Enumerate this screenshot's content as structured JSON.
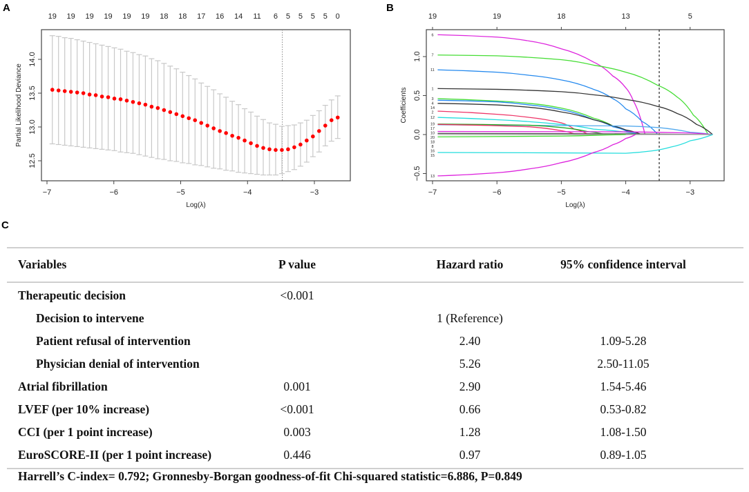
{
  "panels": {
    "a": "A",
    "b": "B",
    "c": "C"
  },
  "chart_data": [
    {
      "type": "scatter",
      "title": "",
      "xlabel": "Log(λ)",
      "ylabel": "Partial Likelihood Deviance",
      "xlim": [
        -7.1,
        -2.55
      ],
      "ylim": [
        12.23,
        14.45
      ],
      "xticks": [
        -7,
        -6,
        -5,
        -4,
        -3
      ],
      "xtick_labels": [
        "−7",
        "−6",
        "−5",
        "−4",
        "−3"
      ],
      "yticks": [
        12.5,
        13.0,
        13.5,
        14.0
      ],
      "ytick_labels": [
        "12.5",
        "13.0",
        "13.5",
        "14.0"
      ],
      "x_start": -6.92,
      "x_step": 0.0928,
      "mean": [
        13.55,
        13.54,
        13.53,
        13.52,
        13.51,
        13.5,
        13.48,
        13.47,
        13.45,
        13.44,
        13.42,
        13.41,
        13.39,
        13.37,
        13.35,
        13.33,
        13.3,
        13.28,
        13.25,
        13.22,
        13.19,
        13.16,
        13.13,
        13.1,
        13.06,
        13.02,
        12.98,
        12.94,
        12.91,
        12.87,
        12.84,
        12.8,
        12.76,
        12.72,
        12.69,
        12.67,
        12.66,
        12.66,
        12.67,
        12.7,
        12.74,
        12.8,
        12.86,
        12.94,
        13.02,
        13.1,
        13.14
      ],
      "upper": [
        14.35,
        14.34,
        14.32,
        14.31,
        14.29,
        14.27,
        14.25,
        14.23,
        14.21,
        14.19,
        14.17,
        14.15,
        14.12,
        14.1,
        14.07,
        14.05,
        14.01,
        13.98,
        13.94,
        13.9,
        13.86,
        13.81,
        13.76,
        13.71,
        13.65,
        13.6,
        13.55,
        13.49,
        13.44,
        13.38,
        13.33,
        13.27,
        13.22,
        13.16,
        13.11,
        13.06,
        13.04,
        13.01,
        13.02,
        13.03,
        13.06,
        13.1,
        13.17,
        13.24,
        13.32,
        13.4,
        13.46
      ],
      "lower": [
        12.75,
        12.74,
        12.73,
        12.72,
        12.71,
        12.7,
        12.69,
        12.68,
        12.67,
        12.66,
        12.65,
        12.63,
        12.62,
        12.61,
        12.59,
        12.57,
        12.55,
        12.53,
        12.52,
        12.5,
        12.49,
        12.47,
        12.46,
        12.44,
        12.43,
        12.41,
        12.39,
        12.38,
        12.36,
        12.35,
        12.33,
        12.32,
        12.31,
        12.3,
        12.29,
        12.29,
        12.29,
        12.31,
        12.34,
        12.37,
        12.42,
        12.48,
        12.56,
        12.63,
        12.72,
        12.79,
        12.83
      ],
      "top_axis": [
        {
          "i": 0,
          "n": "19"
        },
        {
          "i": 3,
          "n": "19"
        },
        {
          "i": 6,
          "n": "19"
        },
        {
          "i": 9,
          "n": "19"
        },
        {
          "i": 12,
          "n": "19"
        },
        {
          "i": 15,
          "n": "19"
        },
        {
          "i": 18,
          "n": "18"
        },
        {
          "i": 21,
          "n": "18"
        },
        {
          "i": 24,
          "n": "17"
        },
        {
          "i": 27,
          "n": "16"
        },
        {
          "i": 30,
          "n": "14"
        },
        {
          "i": 33,
          "n": "11"
        },
        {
          "i": 36,
          "n": "6"
        },
        {
          "i": 38,
          "n": "5"
        },
        {
          "i": 40,
          "n": "5"
        },
        {
          "i": 42,
          "n": "5"
        },
        {
          "i": 44,
          "n": "5"
        },
        {
          "i": 46,
          "n": "0"
        }
      ],
      "vline": -3.48,
      "point_color": "#ff0000",
      "errorbar_color": "#c8c8c8"
    },
    {
      "type": "line",
      "title": "",
      "xlabel": "Log(λ)",
      "ylabel": "Coefficients",
      "xlim": [
        -7.1,
        -2.45
      ],
      "ylim": [
        -0.6,
        1.35
      ],
      "xticks": [
        -7,
        -6,
        -5,
        -4,
        -3
      ],
      "xtick_labels": [
        "−7",
        "−6",
        "−5",
        "−4",
        "−3"
      ],
      "yticks": [
        -0.5,
        0.0,
        0.5,
        1.0
      ],
      "ytick_labels": [
        "−0.5",
        "0.0",
        "0.5",
        "1.0"
      ],
      "top_axis": [
        {
          "x": -7,
          "n": "19"
        },
        {
          "x": -6,
          "n": "19"
        },
        {
          "x": -5,
          "n": "18"
        },
        {
          "x": -4,
          "n": "13"
        },
        {
          "x": -3,
          "n": "5"
        }
      ],
      "vline": -3.48,
      "series": [
        {
          "name": "6",
          "color": "#dd22dd",
          "points": [
            [
              -6.92,
              1.28
            ],
            [
              -6,
              1.25
            ],
            [
              -5.5,
              1.2
            ],
            [
              -5,
              1.1
            ],
            [
              -4.5,
              0.93
            ],
            [
              -4.2,
              0.75
            ],
            [
              -4,
              0.6
            ],
            [
              -3.88,
              0.43
            ],
            [
              -3.7,
              0
            ]
          ]
        },
        {
          "name": "7",
          "color": "#44dd33",
          "points": [
            [
              -6.92,
              1.02
            ],
            [
              -6,
              1.01
            ],
            [
              -5,
              0.96
            ],
            [
              -4.5,
              0.89
            ],
            [
              -4,
              0.8
            ],
            [
              -3.5,
              0.63
            ],
            [
              -3.2,
              0.48
            ],
            [
              -2.95,
              0.25
            ],
            [
              -2.72,
              0
            ]
          ]
        },
        {
          "name": "11",
          "color": "#2288ee",
          "points": [
            [
              -6.92,
              0.83
            ],
            [
              -6,
              0.8
            ],
            [
              -5.5,
              0.76
            ],
            [
              -5,
              0.7
            ],
            [
              -4.5,
              0.58
            ],
            [
              -4.2,
              0.46
            ],
            [
              -4,
              0.33
            ],
            [
              -3.75,
              0.17
            ],
            [
              -3.5,
              0
            ]
          ]
        },
        {
          "name": "1",
          "color": "#333333",
          "points": [
            [
              -6.92,
              0.59
            ],
            [
              -6,
              0.58
            ],
            [
              -5,
              0.55
            ],
            [
              -4.5,
              0.51
            ],
            [
              -4,
              0.45
            ],
            [
              -3.5,
              0.36
            ],
            [
              -3.2,
              0.27
            ],
            [
              -2.9,
              0.13
            ],
            [
              -2.65,
              0
            ]
          ]
        },
        {
          "name": "3",
          "color": "#44dd33",
          "points": [
            [
              -6.92,
              0.46
            ],
            [
              -6,
              0.43
            ],
            [
              -5.5,
              0.4
            ],
            [
              -5,
              0.34
            ],
            [
              -4.5,
              0.21
            ],
            [
              -4.2,
              0.11
            ],
            [
              -4,
              0.05
            ],
            [
              -3.85,
              0
            ]
          ]
        },
        {
          "name": "4",
          "color": "#2288ee",
          "points": [
            [
              -6.92,
              0.44
            ],
            [
              -6,
              0.42
            ],
            [
              -5.5,
              0.38
            ],
            [
              -5,
              0.32
            ],
            [
              -4.5,
              0.19
            ],
            [
              -4.2,
              0.1
            ],
            [
              -4,
              0.05
            ],
            [
              -3.8,
              0
            ]
          ]
        },
        {
          "name": "14",
          "color": "#333333",
          "points": [
            [
              -6.92,
              0.4
            ],
            [
              -6,
              0.38
            ],
            [
              -5.5,
              0.35
            ],
            [
              -5,
              0.29
            ],
            [
              -4.5,
              0.19
            ],
            [
              -4.2,
              0.11
            ],
            [
              -4,
              0.06
            ],
            [
              -3.75,
              0
            ]
          ]
        },
        {
          "name": "2",
          "color": "#ee3366",
          "points": [
            [
              -6.92,
              0.3
            ],
            [
              -6,
              0.26
            ],
            [
              -5.5,
              0.22
            ],
            [
              -5,
              0.15
            ],
            [
              -4.8,
              0.07
            ],
            [
              -4.6,
              0.01
            ],
            [
              -4.3,
              0
            ]
          ]
        },
        {
          "name": "12",
          "color": "#22dddd",
          "points": [
            [
              -6.92,
              0.22
            ],
            [
              -6,
              0.19
            ],
            [
              -5,
              0.13
            ],
            [
              -4.5,
              0.07
            ],
            [
              -4,
              0.03
            ],
            [
              -3.8,
              0
            ]
          ]
        },
        {
          "name": "10",
          "color": "#55aaee",
          "points": [
            [
              -6.92,
              0.125
            ],
            [
              -5,
              0.115
            ],
            [
              -4,
              0.11
            ],
            [
              -3.5,
              0.09
            ],
            [
              -3,
              0.03
            ],
            [
              -2.65,
              0
            ]
          ]
        },
        {
          "name": "19",
          "color": "#22aa22",
          "points": [
            [
              -6.92,
              0.135
            ],
            [
              -5.5,
              0.12
            ],
            [
              -5,
              0.09
            ],
            [
              -4.6,
              0.04
            ],
            [
              -4.3,
              0
            ]
          ]
        },
        {
          "name": "17",
          "color": "#ee3366",
          "points": [
            [
              -6.92,
              0.13
            ],
            [
              -5.5,
              0.1
            ],
            [
              -5,
              0.05
            ],
            [
              -4.8,
              0.01
            ],
            [
              -4.6,
              0
            ]
          ]
        },
        {
          "name": "20",
          "color": "#dd22dd",
          "points": [
            [
              -6.92,
              0.04
            ],
            [
              -4,
              0.035
            ],
            [
              -3,
              0.02
            ],
            [
              -2.65,
              0
            ]
          ]
        },
        {
          "name": "18",
          "color": "#555555",
          "points": [
            [
              -6.92,
              0.015
            ],
            [
              -4,
              0.01
            ],
            [
              -2.65,
              0
            ]
          ]
        },
        {
          "name": "8",
          "color": "#aaaaaa",
          "points": [
            [
              -6.92,
              0.0
            ],
            [
              -2.65,
              0
            ]
          ]
        },
        {
          "name": "16",
          "color": "#44dd33",
          "points": [
            [
              -6.92,
              -0.03
            ],
            [
              -5,
              -0.02
            ],
            [
              -4.3,
              -0.005
            ],
            [
              -4,
              0
            ]
          ]
        },
        {
          "name": "15",
          "color": "#22dddd",
          "points": [
            [
              -6.92,
              -0.23
            ],
            [
              -5,
              -0.235
            ],
            [
              -4,
              -0.24
            ],
            [
              -3.6,
              -0.21
            ],
            [
              -3.3,
              -0.16
            ],
            [
              -3,
              -0.08
            ],
            [
              -2.65,
              0
            ]
          ]
        },
        {
          "name": "13",
          "color": "#dd22dd",
          "points": [
            [
              -6.92,
              -0.53
            ],
            [
              -6,
              -0.49
            ],
            [
              -5.5,
              -0.44
            ],
            [
              -5,
              -0.36
            ],
            [
              -4.5,
              -0.23
            ],
            [
              -4.2,
              -0.13
            ],
            [
              -4,
              -0.05
            ],
            [
              -3.85,
              0
            ]
          ]
        }
      ]
    }
  ],
  "table": {
    "headers": [
      "Variables",
      "P value",
      "Hazard ratio",
      "95% confidence interval"
    ],
    "rows": [
      {
        "variable": "Therapeutic decision",
        "p": "<0.001",
        "hr": "",
        "ci": "",
        "indent": false
      },
      {
        "variable": "Decision to intervene",
        "p": "",
        "hr": "1 (Reference)",
        "ci": "",
        "indent": true
      },
      {
        "variable": "Patient refusal of intervention",
        "p": "",
        "hr": "2.40",
        "ci": "1.09-5.28",
        "indent": true
      },
      {
        "variable": "Physician denial of intervention",
        "p": "",
        "hr": "5.26",
        "ci": "2.50-11.05",
        "indent": true
      },
      {
        "variable": "Atrial fibrillation",
        "p": "0.001",
        "hr": "2.90",
        "ci": "1.54-5.46",
        "indent": false
      },
      {
        "variable": "LVEF (per 10% increase)",
        "p": "<0.001",
        "hr": "0.66",
        "ci": "0.53-0.82",
        "indent": false
      },
      {
        "variable": "CCI (per 1 point increase)",
        "p": "0.003",
        "hr": "1.28",
        "ci": "1.08-1.50",
        "indent": false
      },
      {
        "variable": "EuroSCORE-II (per 1 point increase)",
        "p": "0.446",
        "hr": "0.97",
        "ci": "0.89-1.05",
        "indent": false
      }
    ],
    "footer": "Harrell’s C-index= 0.792; Gronnesby-Borgan goodness-of-fit Chi-squared statistic=6.886, P=0.849"
  }
}
